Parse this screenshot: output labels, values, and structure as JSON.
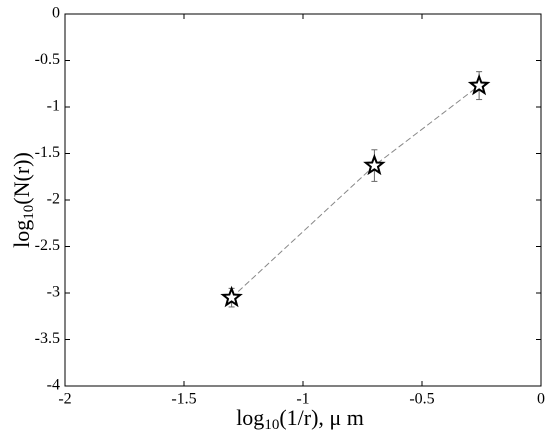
{
  "chart_data": {
    "type": "scatter",
    "xlabel": [
      "log",
      "10",
      "(1/r), μ m"
    ],
    "ylabel": [
      "log",
      "10",
      "(N(r))"
    ],
    "xlim": [
      -2,
      0
    ],
    "ylim": [
      -4,
      0
    ],
    "xticks": [
      -2,
      -1.5,
      -1,
      -0.5,
      0
    ],
    "yticks": [
      0,
      -0.5,
      -1,
      -1.5,
      -2,
      -2.5,
      -3,
      -3.5,
      -4
    ],
    "series": [
      {
        "x": [
          -1.3,
          -0.7,
          -0.26
        ],
        "values": [
          -3.05,
          -1.63,
          -0.77
        ],
        "errors": [
          0.1,
          0.17,
          0.15
        ],
        "color": "#000000",
        "marker": "star",
        "line_style": "dashed",
        "line_color": "#888888"
      }
    ]
  }
}
